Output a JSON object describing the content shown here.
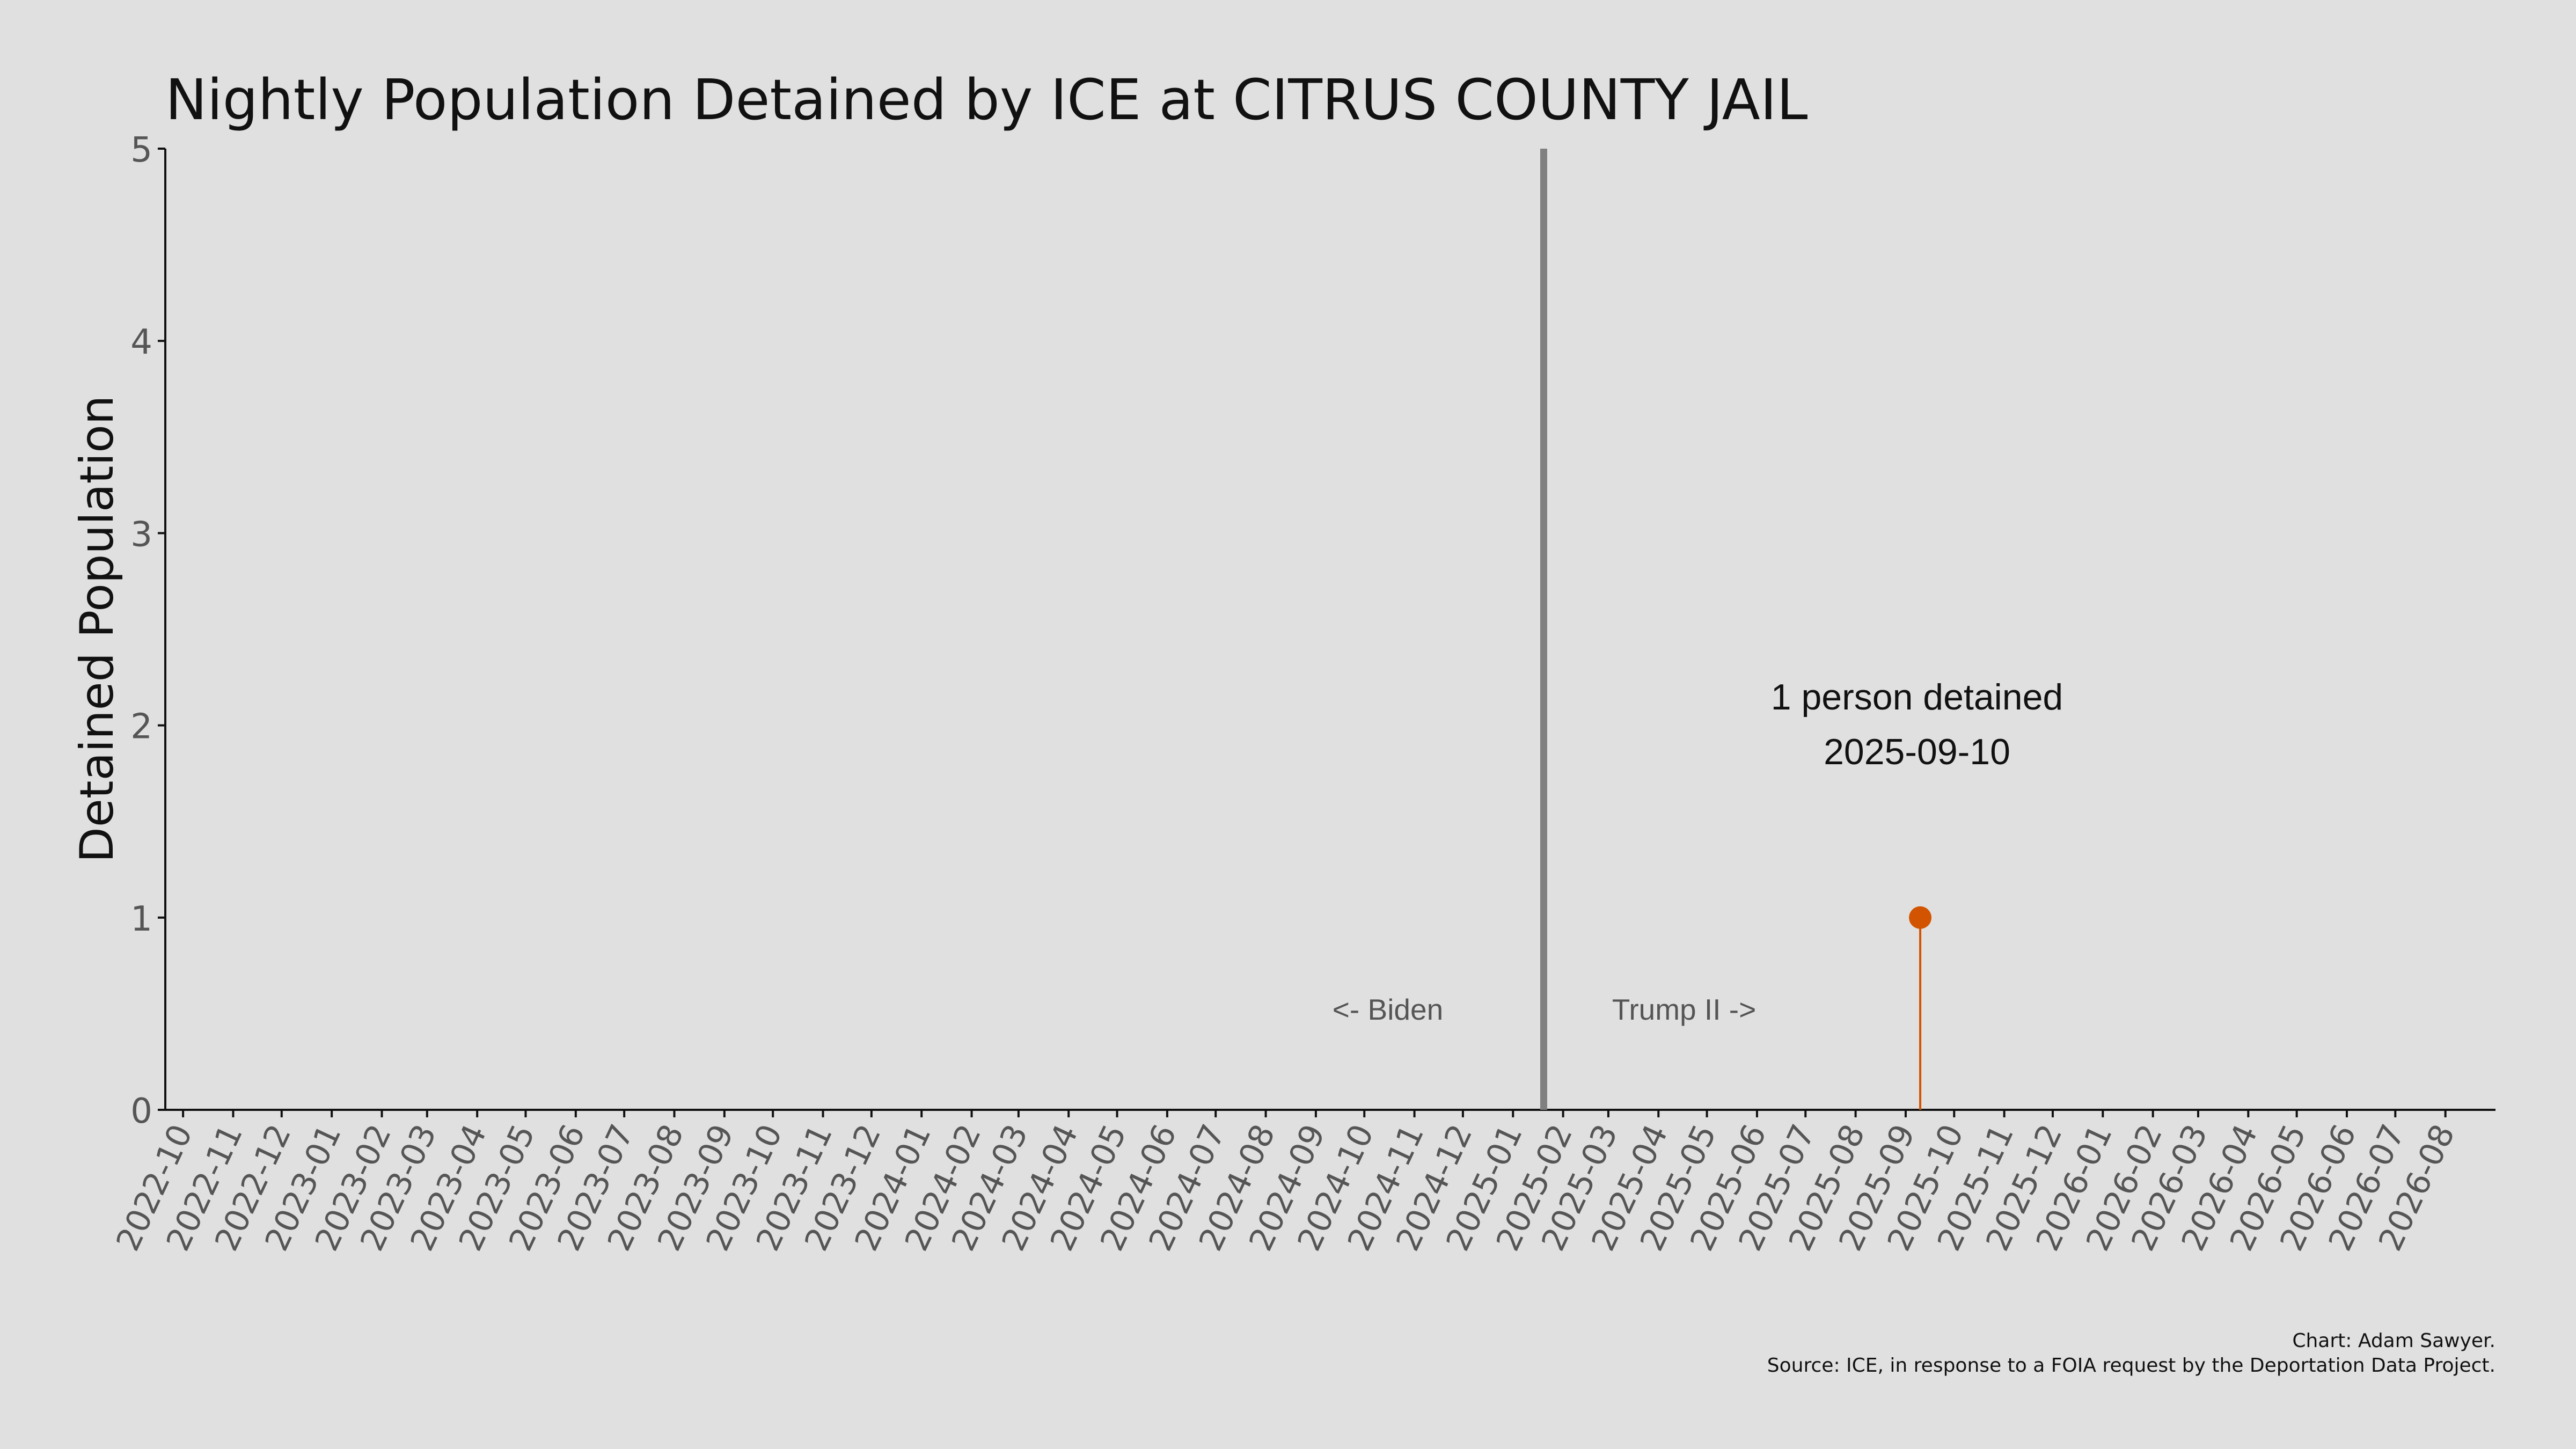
{
  "chart_data": {
    "type": "line",
    "title": "Nightly Population Detained by ICE at CITRUS COUNTY JAIL",
    "xlabel": "",
    "ylabel": "Detained Population",
    "ylim": [
      0,
      5
    ],
    "yticks": [
      "0",
      "1",
      "2",
      "3",
      "4",
      "5"
    ],
    "xlim": [
      "2022-09-20",
      "2026-09-01"
    ],
    "xticks": [
      "2022-10",
      "2022-11",
      "2022-12",
      "2023-01",
      "2023-02",
      "2023-03",
      "2023-04",
      "2023-05",
      "2023-06",
      "2023-07",
      "2023-08",
      "2023-09",
      "2023-10",
      "2023-11",
      "2023-12",
      "2024-01",
      "2024-02",
      "2024-03",
      "2024-04",
      "2024-05",
      "2024-06",
      "2024-07",
      "2024-08",
      "2024-09",
      "2024-10",
      "2024-11",
      "2024-12",
      "2025-01",
      "2025-02",
      "2025-03",
      "2025-04",
      "2025-05",
      "2025-06",
      "2025-07",
      "2025-08",
      "2025-09",
      "2025-10",
      "2025-11",
      "2025-12",
      "2026-01",
      "2026-02",
      "2026-03",
      "2026-04",
      "2026-05",
      "2026-06",
      "2026-07",
      "2026-08"
    ],
    "grid": false,
    "series": [
      {
        "color": "#d35400",
        "points": [
          {
            "x": "2025-09-10",
            "y": 1
          }
        ]
      }
    ],
    "reference_line": {
      "x": "2025-01-20",
      "color": "#808080"
    },
    "annotations": {
      "left_label": "<- Biden",
      "right_label": "Trump II ->",
      "peak_line1": "1 person detained",
      "peak_line2": "2025-09-10"
    },
    "credits": {
      "line1": "Chart: Adam Sawyer.",
      "line2": "Source: ICE, in response to a FOIA request by the Deportation Data Project."
    }
  }
}
